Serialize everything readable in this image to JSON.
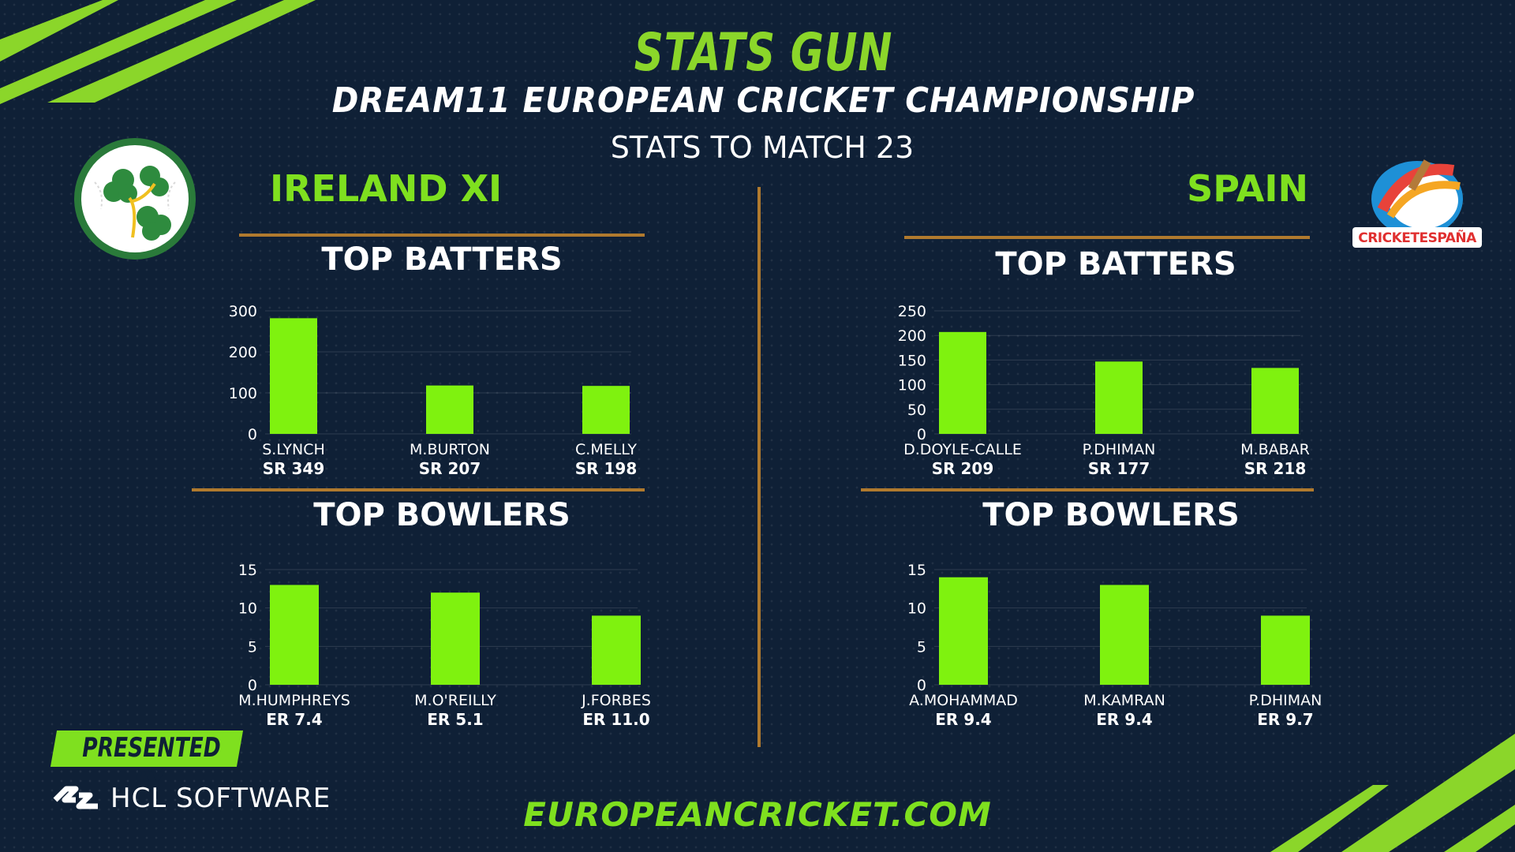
{
  "header": {
    "title": "STATS GUN",
    "subtitle": "DREAM11 EUROPEAN CRICKET CHAMPIONSHIP",
    "stats_label": "STATS TO MATCH 23"
  },
  "teams": {
    "left": {
      "name": "IRELAND XI"
    },
    "right": {
      "name": "SPAIN",
      "logo_text": "CRICKETESPAÑA"
    }
  },
  "sections": {
    "batters_title": "TOP BATTERS",
    "bowlers_title": "TOP BOWLERS"
  },
  "footer": {
    "presented_by": "PRESENTED BY",
    "sponsor": "HCL SOFTWARE",
    "url": "EUROPEANCRICKET.COM"
  },
  "colors": {
    "background": "#0f2036",
    "accent_green": "#7fe01f",
    "bar": "#7ff20f",
    "rule": "#b07a2e"
  },
  "chart_data": [
    {
      "type": "bar",
      "team": "IRELAND XI",
      "title": "TOP BATTERS",
      "categories": [
        "S.LYNCH",
        "M.BURTON",
        "C.MELLY"
      ],
      "values": [
        282,
        118,
        117
      ],
      "sublabels": [
        "SR 349",
        "SR 207",
        "SR 198"
      ],
      "yticks": [
        0,
        100,
        200,
        300
      ],
      "ylim": [
        0,
        300
      ],
      "grid": true
    },
    {
      "type": "bar",
      "team": "SPAIN",
      "title": "TOP BATTERS",
      "categories": [
        "D.DOYLE-CALLE",
        "P.DHIMAN",
        "M.BABAR"
      ],
      "values": [
        207,
        147,
        134
      ],
      "sublabels": [
        "SR 209",
        "SR 177",
        "SR 218"
      ],
      "yticks": [
        0,
        50,
        100,
        150,
        200,
        250
      ],
      "ylim": [
        0,
        250
      ],
      "grid": true
    },
    {
      "type": "bar",
      "team": "IRELAND XI",
      "title": "TOP BOWLERS",
      "categories": [
        "M.HUMPHREYS",
        "M.O'REILLY",
        "J.FORBES"
      ],
      "values": [
        13,
        12,
        9
      ],
      "sublabels": [
        "ER 7.4",
        "ER 5.1",
        "ER 11.0"
      ],
      "yticks": [
        0,
        5,
        10,
        15
      ],
      "ylim": [
        0,
        15
      ],
      "grid": true
    },
    {
      "type": "bar",
      "team": "SPAIN",
      "title": "TOP BOWLERS",
      "categories": [
        "A.MOHAMMAD",
        "M.KAMRAN",
        "P.DHIMAN"
      ],
      "values": [
        14,
        13,
        9
      ],
      "sublabels": [
        "ER 9.4",
        "ER 9.4",
        "ER 9.7"
      ],
      "yticks": [
        0,
        5,
        10,
        15
      ],
      "ylim": [
        0,
        15
      ],
      "grid": true
    }
  ]
}
